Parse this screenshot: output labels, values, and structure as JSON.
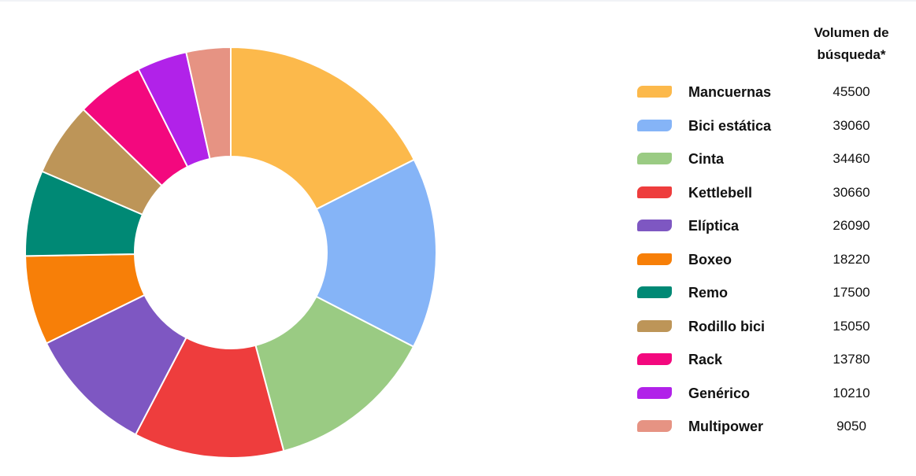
{
  "chart_data": {
    "type": "pie",
    "variant": "donut",
    "title": "",
    "legend_header": [
      "Volumen de",
      "búsqueda*"
    ],
    "legend_placement": "right",
    "categories": [
      "Mancuernas",
      "Bici estática",
      "Cinta",
      "Kettlebell",
      "Elíptica",
      "Boxeo",
      "Remo",
      "Rodillo bici",
      "Rack",
      "Genérico",
      "Multipower"
    ],
    "values": [
      45500,
      39060,
      34460,
      30660,
      26090,
      18220,
      17500,
      15050,
      13780,
      10210,
      9050
    ],
    "value_labels": [
      "45500",
      "39060",
      "34460",
      "30660",
      "26090",
      "18220",
      "17500",
      "15050",
      "13780",
      "10210",
      "9050"
    ],
    "colors": [
      "#fcb94b",
      "#85b4f7",
      "#9acb83",
      "#ee3d3d",
      "#7e57c2",
      "#f77f08",
      "#008975",
      "#bd9558",
      "#f3087e",
      "#b122e9",
      "#e69383"
    ]
  }
}
